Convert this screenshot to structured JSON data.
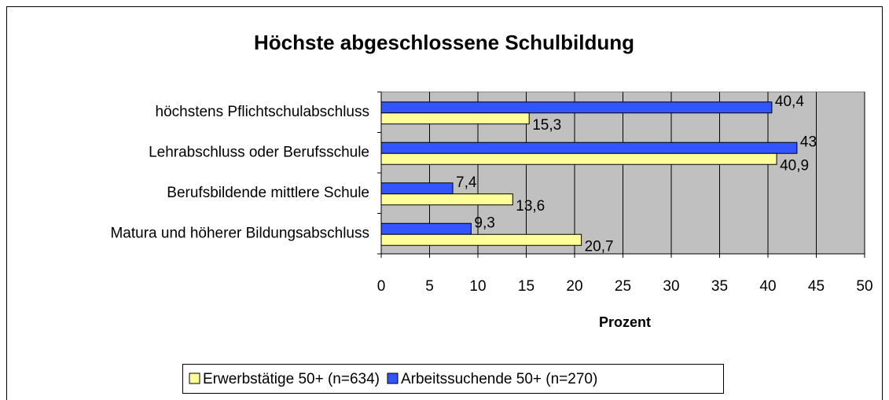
{
  "chart_data": {
    "type": "bar",
    "orientation": "horizontal",
    "title": "Höchste abgeschlossene Schulbildung",
    "x_label": "Prozent",
    "categories": [
      "höchstens Pflichtschulabschluss",
      "Lehrabschluss oder Berufsschule",
      "Berufsbildende mittlere Schule",
      "Matura und höherer Bildungsabschluss"
    ],
    "series": [
      {
        "name": "Erwerbstätige 50+ (n=634)",
        "color": "#ffff99",
        "values": [
          15.3,
          40.9,
          13.6,
          20.7
        ],
        "value_labels": [
          "15,3",
          "40,9",
          "13,6",
          "20,7"
        ]
      },
      {
        "name": "Arbeitssuchende 50+ (n=270)",
        "color": "#3355ff",
        "values": [
          40.4,
          43,
          7.4,
          9.3
        ],
        "value_labels": [
          "40,4",
          "43",
          "7,4",
          "9,3"
        ]
      }
    ],
    "xlim": [
      0,
      50
    ],
    "xticks": [
      0,
      5,
      10,
      15,
      20,
      25,
      30,
      35,
      40,
      45,
      50
    ],
    "grid": true,
    "legend": "bottom"
  }
}
